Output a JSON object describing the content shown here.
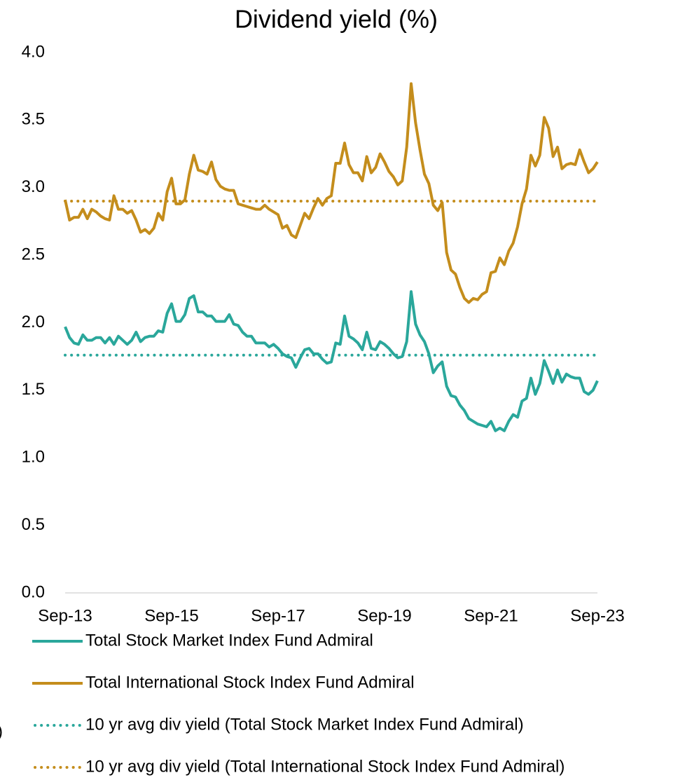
{
  "chart_data": {
    "type": "line",
    "title": "Dividend yield (%)",
    "annotation": ")",
    "categories": [
      "Sep-13",
      null,
      null,
      null,
      null,
      null,
      null,
      null,
      null,
      null,
      null,
      null,
      null,
      null,
      null,
      null,
      null,
      null,
      null,
      null,
      null,
      null,
      null,
      null,
      "Sep-15",
      null,
      null,
      null,
      null,
      null,
      null,
      null,
      null,
      null,
      null,
      null,
      null,
      null,
      null,
      null,
      null,
      null,
      null,
      null,
      null,
      null,
      null,
      null,
      "Sep-17",
      null,
      null,
      null,
      null,
      null,
      null,
      null,
      null,
      null,
      null,
      null,
      null,
      null,
      null,
      null,
      null,
      null,
      null,
      null,
      null,
      null,
      null,
      null,
      "Sep-19",
      null,
      null,
      null,
      null,
      null,
      null,
      null,
      null,
      null,
      null,
      null,
      null,
      null,
      null,
      null,
      null,
      null,
      null,
      null,
      null,
      null,
      null,
      null,
      "Sep-21",
      null,
      null,
      null,
      null,
      null,
      null,
      null,
      null,
      null,
      null,
      null,
      null,
      null,
      null,
      null,
      null,
      null,
      null,
      null,
      null,
      null,
      null,
      null,
      "Sep-23"
    ],
    "series": [
      {
        "name": "Total Stock Market Index Fund Admiral",
        "color": "#2aa79b",
        "style": "solid",
        "values": [
          1.97,
          1.89,
          1.85,
          1.84,
          1.91,
          1.87,
          1.87,
          1.89,
          1.89,
          1.85,
          1.89,
          1.84,
          1.9,
          1.87,
          1.84,
          1.87,
          1.93,
          1.86,
          1.89,
          1.9,
          1.9,
          1.94,
          1.93,
          2.07,
          2.14,
          2.01,
          2.01,
          2.06,
          2.18,
          2.2,
          2.08,
          2.08,
          2.05,
          2.05,
          2.01,
          2.01,
          2.01,
          2.06,
          1.99,
          1.98,
          1.93,
          1.9,
          1.9,
          1.85,
          1.85,
          1.85,
          1.82,
          1.84,
          1.81,
          1.77,
          1.75,
          1.74,
          1.67,
          1.74,
          1.8,
          1.81,
          1.77,
          1.77,
          1.73,
          1.7,
          1.71,
          1.85,
          1.84,
          2.05,
          1.9,
          1.88,
          1.85,
          1.8,
          1.93,
          1.81,
          1.8,
          1.86,
          1.84,
          1.81,
          1.77,
          1.74,
          1.75,
          1.86,
          2.23,
          1.99,
          1.91,
          1.86,
          1.77,
          1.63,
          1.68,
          1.71,
          1.53,
          1.46,
          1.45,
          1.39,
          1.35,
          1.29,
          1.27,
          1.25,
          1.24,
          1.23,
          1.27,
          1.2,
          1.22,
          1.2,
          1.27,
          1.32,
          1.3,
          1.42,
          1.44,
          1.59,
          1.47,
          1.55,
          1.72,
          1.64,
          1.55,
          1.65,
          1.56,
          1.62,
          1.6,
          1.59,
          1.59,
          1.49,
          1.47,
          1.5,
          1.57
        ]
      },
      {
        "name": "Total International Stock Index Fund Admiral",
        "color": "#c48d1c",
        "style": "solid",
        "values": [
          2.91,
          2.76,
          2.78,
          2.78,
          2.84,
          2.77,
          2.84,
          2.82,
          2.79,
          2.77,
          2.76,
          2.94,
          2.84,
          2.84,
          2.81,
          2.83,
          2.76,
          2.67,
          2.69,
          2.66,
          2.7,
          2.81,
          2.76,
          2.97,
          3.07,
          2.88,
          2.88,
          2.91,
          3.1,
          3.24,
          3.13,
          3.12,
          3.1,
          3.19,
          3.06,
          3.01,
          2.99,
          2.98,
          2.98,
          2.88,
          2.87,
          2.86,
          2.85,
          2.84,
          2.84,
          2.87,
          2.84,
          2.82,
          2.8,
          2.7,
          2.72,
          2.65,
          2.63,
          2.72,
          2.81,
          2.77,
          2.85,
          2.92,
          2.87,
          2.92,
          2.94,
          3.18,
          3.18,
          3.33,
          3.17,
          3.11,
          3.11,
          3.05,
          3.23,
          3.11,
          3.15,
          3.25,
          3.19,
          3.12,
          3.08,
          3.02,
          3.05,
          3.3,
          3.77,
          3.48,
          3.28,
          3.1,
          3.03,
          2.87,
          2.83,
          2.89,
          2.52,
          2.39,
          2.36,
          2.26,
          2.18,
          2.15,
          2.18,
          2.17,
          2.21,
          2.23,
          2.37,
          2.38,
          2.48,
          2.43,
          2.53,
          2.59,
          2.71,
          2.88,
          2.99,
          3.24,
          3.16,
          3.24,
          3.52,
          3.44,
          3.23,
          3.3,
          3.14,
          3.17,
          3.18,
          3.17,
          3.28,
          3.19,
          3.11,
          3.14,
          3.19
        ]
      },
      {
        "name": "10 yr avg div yield (Total Stock Market Index Fund Admiral)",
        "color": "#2aa79b",
        "style": "dotted",
        "value": 1.76
      },
      {
        "name": "10 yr avg div yield (Total International Stock Index Fund Admiral)",
        "color": "#c48d1c",
        "style": "dotted",
        "value": 2.9
      }
    ],
    "ylim": [
      0,
      4
    ],
    "yticks": [
      {
        "value": 0,
        "label": "0.0"
      },
      0.5,
      {
        "value": 1,
        "label": "1.0"
      },
      1.5,
      {
        "value": 2,
        "label": "2.0"
      },
      2.5,
      {
        "value": 3,
        "label": "3.0"
      },
      3.5,
      {
        "value": 4,
        "label": "4.0"
      }
    ],
    "grid": false
  }
}
